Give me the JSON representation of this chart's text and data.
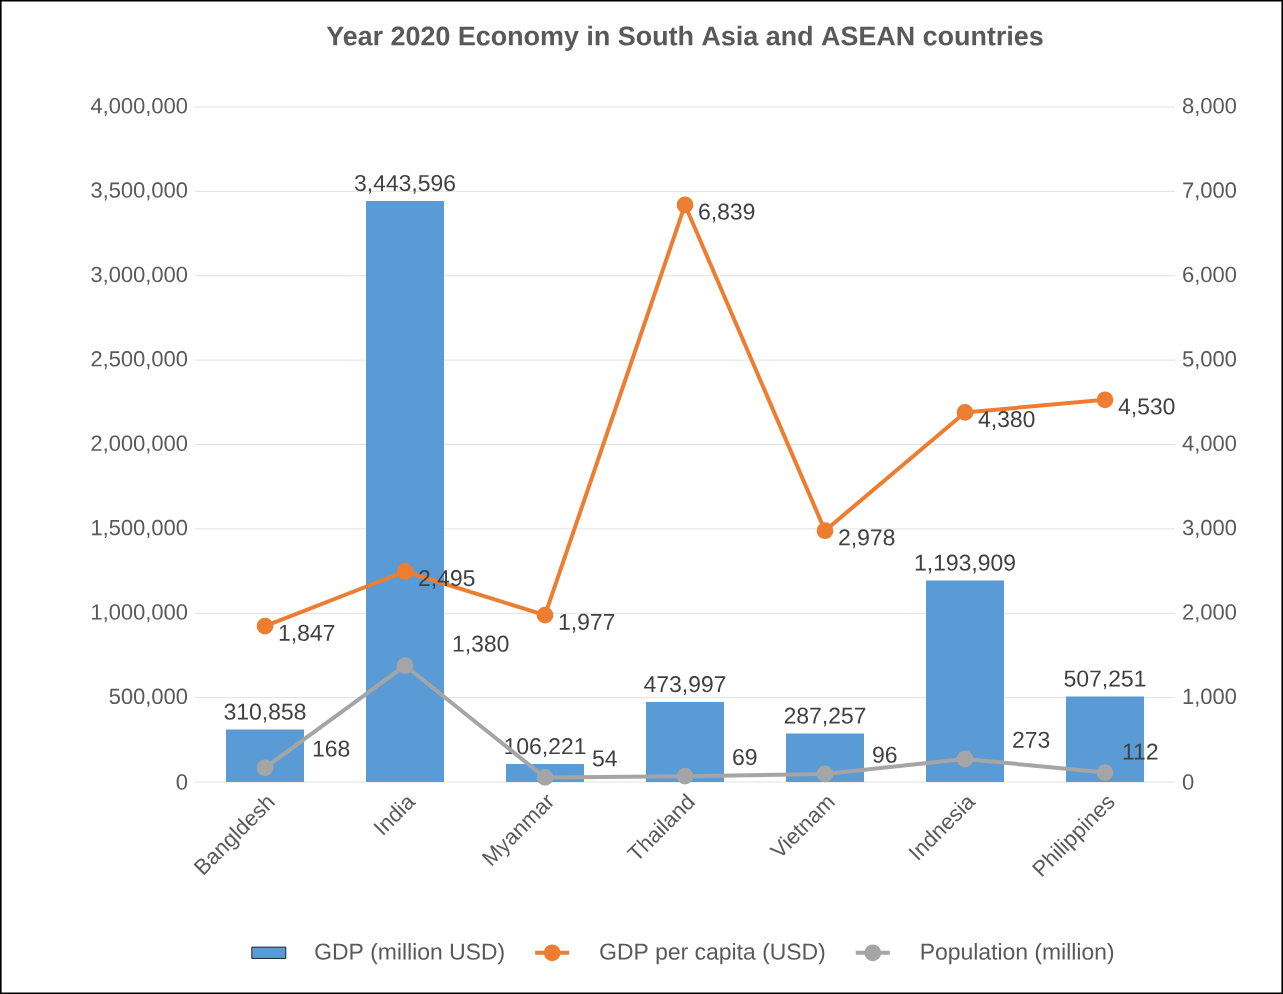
{
  "chart_data": {
    "type": "bar",
    "title": "Year 2020 Economy in South Asia and ASEAN countries",
    "categories": [
      "Bangldesh",
      "India",
      "Myanmar",
      "Thailand",
      "Vietnam",
      "Indnesia",
      "Philippines"
    ],
    "series": [
      {
        "name": "GDP (million USD)",
        "color": "#5b9bd5",
        "values": [
          310858,
          3443596,
          106221,
          473997,
          287257,
          1193909,
          507251
        ],
        "value_labels": [
          "310,858",
          "3,443,596",
          "106,221",
          "473,997",
          "287,257",
          "1,193,909",
          "507,251"
        ]
      },
      {
        "name": "GDP per capita (USD)",
        "type": "line",
        "axis": "y2",
        "color": "#ed7d31",
        "values": [
          1847,
          2495,
          1977,
          6839,
          2978,
          4380,
          4530
        ],
        "value_labels": [
          "1,847",
          "2,495",
          "1,977",
          "6,839",
          "2,978",
          "4,380",
          "4,530"
        ]
      },
      {
        "name": "Population (million)",
        "type": "line",
        "axis": "y2",
        "color": "#a5a5a5",
        "values": [
          168,
          1380,
          54,
          69,
          96,
          273,
          112
        ],
        "value_labels": [
          "168",
          "1,380",
          "54",
          "69",
          "96",
          "273",
          "112"
        ]
      }
    ],
    "ylim": [
      0,
      4000000
    ],
    "yticks": [
      {
        "value": 0,
        "label": "0"
      },
      {
        "value": 500000,
        "label": "500,000"
      },
      {
        "value": 1000000,
        "label": "1,000,000"
      },
      {
        "value": 1500000,
        "label": "1,500,000"
      },
      {
        "value": 2000000,
        "label": "2,000,000"
      },
      {
        "value": 2500000,
        "label": "2,500,000"
      },
      {
        "value": 3000000,
        "label": "3,000,000"
      },
      {
        "value": 3500000,
        "label": "3,500,000"
      },
      {
        "value": 4000000,
        "label": "4,000,000"
      }
    ],
    "y2lim": [
      0,
      8000
    ],
    "y2ticks": [
      0,
      {
        "value": 1000,
        "label": "1,000"
      },
      {
        "value": 2000,
        "label": "2,000"
      },
      {
        "value": 3000,
        "label": "3,000"
      },
      {
        "value": 4000,
        "label": "4,000"
      },
      {
        "value": 5000,
        "label": "5,000"
      },
      {
        "value": 6000,
        "label": "6,000"
      },
      {
        "value": 7000,
        "label": "7,000"
      },
      {
        "value": 8000,
        "label": "8,000"
      }
    ],
    "grid": "y",
    "legend": "bottom",
    "marker": "circle",
    "line_style": "solid"
  }
}
